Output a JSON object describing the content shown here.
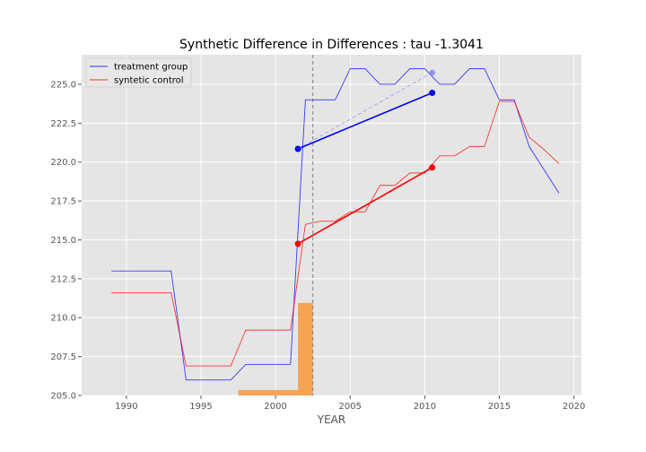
{
  "chart_data": {
    "type": "line",
    "title": "Synthetic Difference in Differences : tau -1.3041",
    "xlabel": "YEAR",
    "ylabel": "",
    "xlim": [
      1987,
      2020.5
    ],
    "ylim": [
      205.0,
      226.9
    ],
    "xticks": [
      1990,
      1995,
      2000,
      2005,
      2010,
      2015,
      2020
    ],
    "yticks": [
      205.0,
      207.5,
      210.0,
      212.5,
      215.0,
      217.5,
      220.0,
      222.5,
      225.0
    ],
    "grid": true,
    "legend_position": "top-left",
    "treatment_year": 2002.5,
    "colors": {
      "treatment": "#0000ff",
      "control": "#ff0000",
      "weights": "#f5a04a",
      "background": "#e5e5e5",
      "vline": "#808080"
    },
    "series": [
      {
        "name": "treatment group",
        "color": "#0000ff",
        "x": [
          1989,
          1990,
          1991,
          1992,
          1993,
          1994,
          1995,
          1996,
          1997,
          1998,
          1999,
          2000,
          2001,
          2002,
          2003,
          2004,
          2005,
          2006,
          2007,
          2008,
          2009,
          2010,
          2011,
          2012,
          2013,
          2014,
          2015,
          2016,
          2017,
          2018,
          2019
        ],
        "y": [
          213.0,
          213.0,
          213.0,
          213.0,
          213.0,
          206.0,
          206.0,
          206.0,
          206.0,
          207.0,
          207.0,
          207.0,
          207.0,
          224.0,
          224.0,
          224.0,
          226.0,
          226.0,
          225.0,
          225.0,
          226.0,
          226.0,
          225.0,
          225.0,
          226.0,
          226.0,
          224.0,
          224.0,
          221.0,
          219.5,
          218.0
        ]
      },
      {
        "name": "syntetic control",
        "color": "#ff0000",
        "x": [
          1989,
          1990,
          1991,
          1992,
          1993,
          1994,
          1995,
          1996,
          1997,
          1998,
          1999,
          2000,
          2001,
          2002,
          2003,
          2004,
          2005,
          2006,
          2007,
          2008,
          2009,
          2010,
          2011,
          2012,
          2013,
          2014,
          2015,
          2016,
          2017,
          2018,
          2019
        ],
        "y": [
          211.6,
          211.6,
          211.6,
          211.6,
          211.6,
          206.9,
          206.9,
          206.9,
          206.9,
          209.2,
          209.2,
          209.2,
          209.2,
          216.0,
          216.2,
          216.2,
          216.8,
          216.8,
          218.5,
          218.5,
          219.3,
          219.3,
          220.4,
          220.4,
          221.0,
          221.0,
          223.9,
          223.9,
          221.6,
          220.8,
          219.9
        ]
      }
    ],
    "segments": [
      {
        "series": "treatment",
        "from": [
          2001.5,
          220.85
        ],
        "to": [
          2010.5,
          224.45
        ],
        "style": "solid"
      },
      {
        "series": "control",
        "from": [
          2001.5,
          214.75
        ],
        "to": [
          2010.5,
          219.65
        ],
        "style": "solid"
      },
      {
        "series": "counterfactual",
        "from": [
          2001.5,
          220.85
        ],
        "to": [
          2010.5,
          225.75
        ],
        "style": "dashed"
      }
    ],
    "bars": [
      {
        "x0": 1997.5,
        "x1": 2001.5,
        "height": 205.35
      },
      {
        "x0": 2001.5,
        "x1": 2002.5,
        "height": 210.95
      }
    ]
  }
}
